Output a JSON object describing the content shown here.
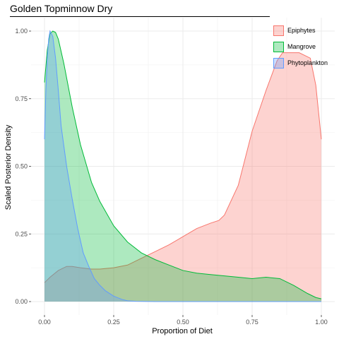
{
  "chart_data": {
    "type": "area",
    "title": "Golden Topminnow Dry",
    "xlabel": "Proportion of Diet",
    "ylabel": "Scaled Posterior Density",
    "xlim": [
      0,
      1
    ],
    "ylim": [
      0,
      1
    ],
    "x_ticks": [
      0.0,
      0.25,
      0.5,
      0.75,
      1.0
    ],
    "x_tick_labels": [
      "0.00",
      "0.25",
      "0.50",
      "0.75",
      "1.00"
    ],
    "y_ticks": [
      0.0,
      0.25,
      0.5,
      0.75,
      1.0
    ],
    "y_tick_labels": [
      "0.00",
      "0.25",
      "0.50",
      "0.75",
      "1.00"
    ],
    "grid": true,
    "legend_position": "top-right",
    "series": [
      {
        "name": "Epiphytes",
        "fill": "#F8766D",
        "x": [
          0.0,
          0.02,
          0.05,
          0.08,
          0.1,
          0.13,
          0.17,
          0.2,
          0.25,
          0.3,
          0.35,
          0.4,
          0.45,
          0.5,
          0.55,
          0.6,
          0.63,
          0.65,
          0.7,
          0.75,
          0.8,
          0.84,
          0.86,
          0.88,
          0.92,
          0.96,
          0.98,
          1.0
        ],
        "values": [
          0.07,
          0.09,
          0.115,
          0.13,
          0.13,
          0.125,
          0.12,
          0.12,
          0.125,
          0.135,
          0.16,
          0.185,
          0.21,
          0.24,
          0.27,
          0.29,
          0.3,
          0.32,
          0.43,
          0.63,
          0.78,
          0.89,
          0.92,
          0.92,
          0.92,
          0.9,
          0.8,
          0.6
        ]
      },
      {
        "name": "Mangrove",
        "fill": "#00BA38",
        "x": [
          0.0,
          0.01,
          0.02,
          0.03,
          0.04,
          0.05,
          0.07,
          0.1,
          0.13,
          0.17,
          0.2,
          0.25,
          0.3,
          0.35,
          0.4,
          0.45,
          0.5,
          0.55,
          0.6,
          0.65,
          0.7,
          0.75,
          0.8,
          0.85,
          0.9,
          0.95,
          0.98,
          1.0
        ],
        "values": [
          0.81,
          0.93,
          0.99,
          1.0,
          0.995,
          0.97,
          0.88,
          0.72,
          0.58,
          0.44,
          0.37,
          0.28,
          0.22,
          0.18,
          0.155,
          0.135,
          0.115,
          0.105,
          0.1,
          0.095,
          0.09,
          0.085,
          0.09,
          0.085,
          0.06,
          0.03,
          0.015,
          0.01
        ]
      },
      {
        "name": "Phytoplankton",
        "fill": "#619CFF",
        "x": [
          0.0,
          0.005,
          0.01,
          0.015,
          0.02,
          0.03,
          0.04,
          0.05,
          0.06,
          0.08,
          0.1,
          0.12,
          0.14,
          0.16,
          0.18,
          0.2,
          0.22,
          0.25,
          0.28,
          0.3,
          0.33,
          0.4,
          0.5,
          0.7,
          1.0
        ],
        "values": [
          0.6,
          0.78,
          0.9,
          0.97,
          1.0,
          0.98,
          0.9,
          0.78,
          0.65,
          0.5,
          0.38,
          0.27,
          0.18,
          0.13,
          0.085,
          0.06,
          0.04,
          0.02,
          0.008,
          0.003,
          0.001,
          0.0,
          0.0,
          0.0,
          0.0
        ]
      }
    ]
  }
}
